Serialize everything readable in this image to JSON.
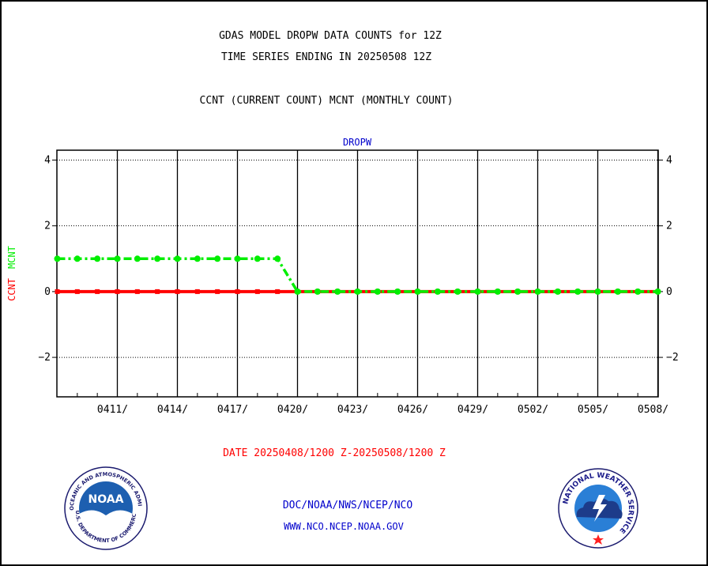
{
  "header": {
    "title_line1": "GDAS MODEL DROPW DATA COUNTS for 12Z",
    "title_line2": "TIME SERIES ENDING IN 20250508 12Z",
    "subtitle": "CCNT (CURRENT COUNT) MCNT (MONTHLY COUNT)"
  },
  "footer": {
    "date_range": "DATE 20250408/1200 Z-20250508/1200 Z",
    "credit_line1": "DOC/NOAA/NWS/NCEP/NCO",
    "credit_line2": "WWW.NCO.NCEP.NOAA.GOV"
  },
  "logos": {
    "noaa": "NOAA",
    "noaa_ring_text": "NATIONAL OCEANIC AND ATMOSPHERIC ADMINISTRATION",
    "noaa_bottom_text": "U.S. DEPARTMENT OF COMMERCE",
    "nws_ring_text": "NATIONAL WEATHER SERVICE"
  },
  "chart_data": {
    "type": "line",
    "title": "DROPW",
    "ylabel_parts": [
      "CCNT",
      "MCNT"
    ],
    "ylim": [
      -3.2,
      4.3
    ],
    "xlim": [
      0,
      30
    ],
    "yticks": [
      4,
      2,
      0,
      -2
    ],
    "ytick_labels": [
      "4",
      "2",
      "0",
      "−2"
    ],
    "xticks": [
      {
        "x": 3,
        "label": "0411/"
      },
      {
        "x": 6,
        "label": "0414/"
      },
      {
        "x": 9,
        "label": "0417/"
      },
      {
        "x": 12,
        "label": "0420/"
      },
      {
        "x": 15,
        "label": "0423/"
      },
      {
        "x": 18,
        "label": "0426/"
      },
      {
        "x": 21,
        "label": "0429/"
      },
      {
        "x": 24,
        "label": "0502/"
      },
      {
        "x": 27,
        "label": "0505/"
      },
      {
        "x": 30,
        "label": "0508/"
      }
    ],
    "grid": true,
    "colors": {
      "ccnt": "#ff0000",
      "mcnt": "#00ee00",
      "title": "#0000cc",
      "axes": "#000000"
    },
    "series": [
      {
        "name": "CCNT",
        "x": [
          0,
          1,
          2,
          3,
          4,
          5,
          6,
          7,
          8,
          9,
          10,
          11,
          12,
          13,
          14,
          15,
          16,
          17,
          18,
          19,
          20,
          21,
          22,
          23,
          24,
          25,
          26,
          27,
          28,
          29,
          30
        ],
        "values": [
          0,
          0,
          0,
          0,
          0,
          0,
          0,
          0,
          0,
          0,
          0,
          0,
          0,
          0,
          0,
          0,
          0,
          0,
          0,
          0,
          0,
          0,
          0,
          0,
          0,
          0,
          0,
          0,
          0,
          0,
          0
        ]
      },
      {
        "name": "MCNT",
        "x": [
          0,
          1,
          2,
          3,
          4,
          5,
          6,
          7,
          8,
          9,
          10,
          11,
          12,
          13,
          14,
          15,
          16,
          17,
          18,
          19,
          20,
          21,
          22,
          23,
          24,
          25,
          26,
          27,
          28,
          29,
          30
        ],
        "values": [
          1,
          1,
          1,
          1,
          1,
          1,
          1,
          1,
          1,
          1,
          1,
          1,
          0,
          0,
          0,
          0,
          0,
          0,
          0,
          0,
          0,
          0,
          0,
          0,
          0,
          0,
          0,
          0,
          0,
          0,
          0
        ]
      }
    ]
  }
}
